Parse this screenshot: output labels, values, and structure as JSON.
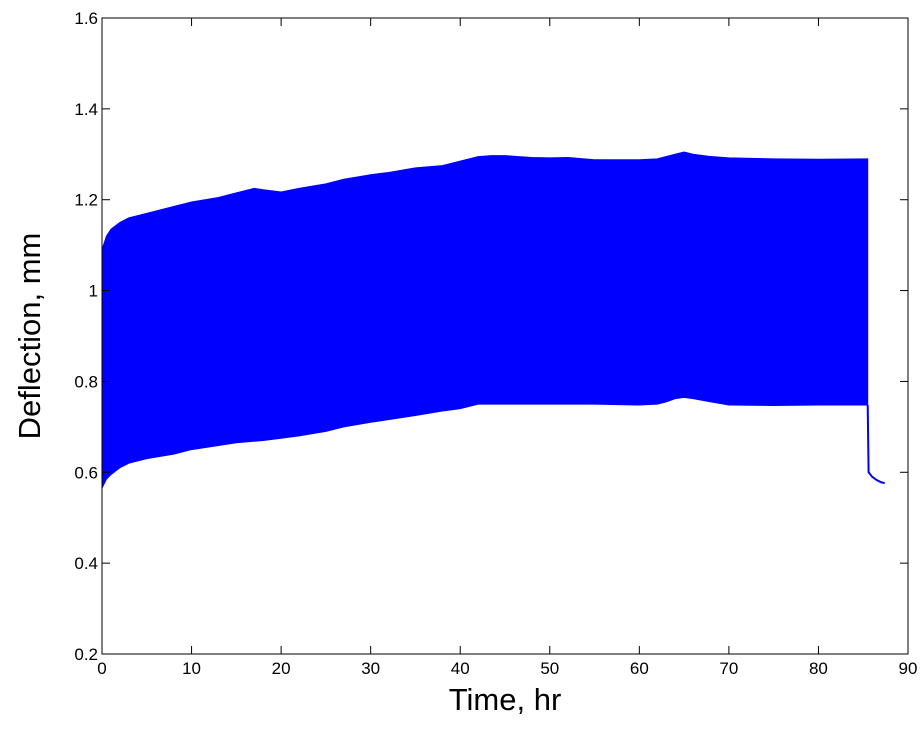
{
  "chart_data": {
    "type": "area",
    "title": "",
    "xlabel": "Time, hr",
    "ylabel": "Deflection, mm",
    "xlim": [
      0,
      90
    ],
    "ylim": [
      0.2,
      1.6
    ],
    "xticks": [
      0,
      10,
      20,
      30,
      40,
      50,
      60,
      70,
      80,
      90
    ],
    "yticks": [
      0.2,
      0.4,
      0.6,
      0.8,
      1,
      1.2,
      1.4,
      1.6
    ],
    "grid": false,
    "legend": "none",
    "colors": {
      "series": "#0000ff",
      "axes": "#000000",
      "background": "#ffffff"
    },
    "series": [
      {
        "upper_envelope": {
          "x": [
            0,
            0.5,
            1,
            2,
            3,
            5,
            8,
            10,
            13,
            15,
            17,
            18,
            20,
            22,
            25,
            27,
            30,
            32,
            35,
            38,
            40,
            42,
            43.5,
            45,
            48,
            50,
            52,
            55,
            58,
            60,
            62,
            64,
            65,
            66,
            68,
            70,
            75,
            80,
            85.5
          ],
          "y": [
            1.09,
            1.12,
            1.135,
            1.15,
            1.16,
            1.17,
            1.185,
            1.195,
            1.205,
            1.215,
            1.225,
            1.222,
            1.217,
            1.225,
            1.235,
            1.245,
            1.255,
            1.26,
            1.27,
            1.275,
            1.285,
            1.295,
            1.297,
            1.297,
            1.293,
            1.292,
            1.293,
            1.288,
            1.288,
            1.288,
            1.29,
            1.3,
            1.305,
            1.3,
            1.295,
            1.292,
            1.29,
            1.289,
            1.29
          ]
        },
        "lower_envelope": {
          "x": [
            0,
            0.5,
            1,
            2,
            3,
            5,
            8,
            10,
            15,
            18,
            20,
            22,
            25,
            27,
            30,
            35,
            38,
            40,
            42,
            45,
            50,
            55,
            60,
            62,
            63,
            64,
            65,
            66,
            68,
            70,
            75,
            80,
            85.5
          ],
          "y": [
            0.565,
            0.585,
            0.595,
            0.61,
            0.62,
            0.63,
            0.64,
            0.65,
            0.665,
            0.67,
            0.675,
            0.68,
            0.69,
            0.7,
            0.71,
            0.725,
            0.735,
            0.74,
            0.75,
            0.75,
            0.75,
            0.75,
            0.748,
            0.75,
            0.755,
            0.762,
            0.765,
            0.762,
            0.755,
            0.748,
            0.747,
            0.748,
            0.748
          ]
        },
        "tail_line": {
          "x": [
            85.5,
            85.6,
            86,
            86.5,
            87,
            87.4
          ],
          "y": [
            0.748,
            0.6,
            0.59,
            0.583,
            0.578,
            0.576
          ]
        }
      }
    ]
  }
}
